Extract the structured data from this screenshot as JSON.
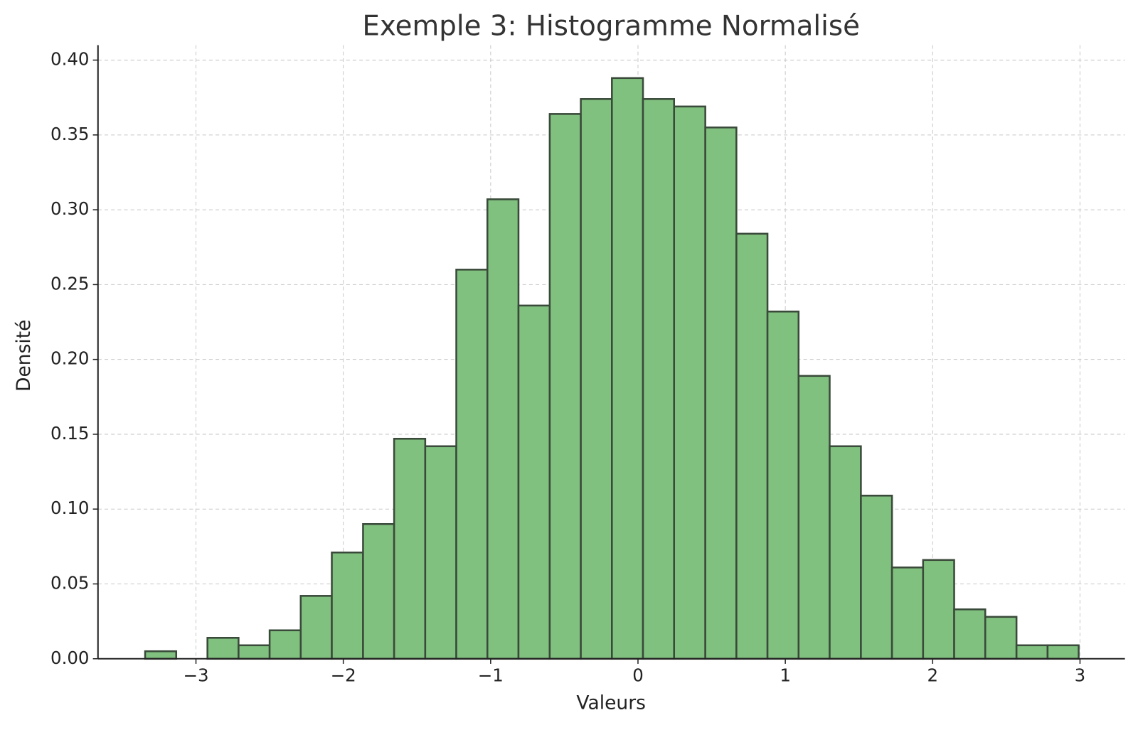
{
  "chart_data": {
    "type": "histogram",
    "title": "Exemple 3: Histogramme Normalisé",
    "x_label": "Valeurs",
    "y_label": "Densité",
    "bins": [
      -3.345,
      -3.134,
      -2.922,
      -2.711,
      -2.5,
      -2.289,
      -2.078,
      -1.866,
      -1.655,
      -1.444,
      -1.233,
      -1.022,
      -0.811,
      -0.599,
      -0.388,
      -0.177,
      0.034,
      0.245,
      0.457,
      0.668,
      0.879,
      1.09,
      1.301,
      1.513,
      1.724,
      1.935,
      2.146,
      2.357,
      2.569,
      2.78,
      2.991
    ],
    "values": [
      0.005,
      0,
      0.014,
      0.009,
      0.019,
      0.042,
      0.071,
      0.09,
      0.147,
      0.142,
      0.26,
      0.307,
      0.236,
      0.364,
      0.374,
      0.388,
      0.374,
      0.369,
      0.355,
      0.284,
      0.232,
      0.189,
      0.142,
      0.109,
      0.061,
      0.066,
      0.033,
      0.028,
      0.009,
      0.009
    ],
    "color": "#81c17f",
    "edgecolor": "#3a4a3a",
    "xlim": [
      -3.665,
      3.305
    ],
    "ylim": [
      0,
      0.41
    ],
    "xticks": [
      {
        "value": -3,
        "label": "−3"
      },
      {
        "value": -2,
        "label": "−2"
      },
      {
        "value": -1,
        "label": "−1"
      },
      0,
      1,
      2,
      3
    ],
    "yticks": [
      {
        "value": 0,
        "label": "0.00"
      },
      {
        "value": 0.05,
        "label": "0.05"
      },
      {
        "value": 0.1,
        "label": "0.10"
      },
      {
        "value": 0.15,
        "label": "0.15"
      },
      {
        "value": 0.2,
        "label": "0.20"
      },
      {
        "value": 0.25,
        "label": "0.25"
      },
      {
        "value": 0.3,
        "label": "0.30"
      },
      {
        "value": 0.35,
        "label": "0.35"
      },
      {
        "value": 0.4,
        "label": "0.40"
      }
    ],
    "grid": true
  }
}
